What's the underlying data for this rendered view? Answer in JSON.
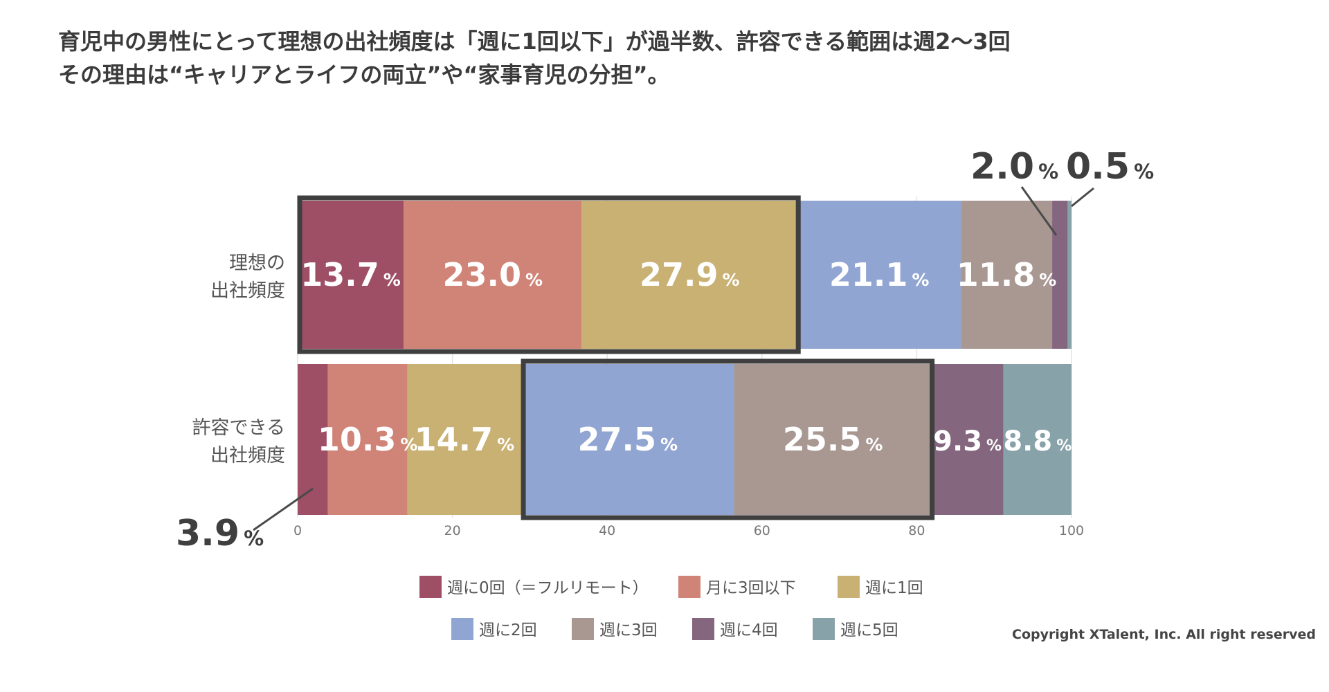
{
  "headline": {
    "line1": "育児中の男性にとって理想の出社頻度は「週に1回以下」が過半数、許容できる範囲は週2〜3回",
    "line2": "その理由は“キャリアとライフの両立”や“家事育児の分担”。"
  },
  "chart_data": {
    "type": "bar",
    "orientation": "horizontal",
    "stacked": true,
    "categories": [
      "理想の\n出社頻度",
      "許容できる\n出社頻度"
    ],
    "category_lines": [
      [
        "理想の",
        "出社頻度"
      ],
      [
        "許容できる",
        "出社頻度"
      ]
    ],
    "series": [
      {
        "name": "週に0回（＝フルリモート）",
        "color": "#9e4f66",
        "values": [
          13.7,
          3.9
        ]
      },
      {
        "name": "月に3回以下",
        "color": "#cf8477",
        "values": [
          23.0,
          10.3
        ]
      },
      {
        "name": "週に1回",
        "color": "#c9b073",
        "values": [
          27.9,
          14.7
        ]
      },
      {
        "name": "週に2回",
        "color": "#91a5d2",
        "values": [
          21.1,
          27.5
        ]
      },
      {
        "name": "週に3回",
        "color": "#a99792",
        "values": [
          11.8,
          25.5
        ]
      },
      {
        "name": "週に4回",
        "color": "#84667e",
        "values": [
          2.0,
          9.3
        ]
      },
      {
        "name": "週に5回",
        "color": "#88a2a9",
        "values": [
          0.5,
          8.8
        ]
      }
    ],
    "percent_sign": "%",
    "xlim": [
      0,
      100
    ],
    "xticks": [
      "0",
      "20",
      "40",
      "60",
      "80",
      "100"
    ],
    "highlight_ranges": [
      {
        "category": 0,
        "from_series": 0,
        "to_series": 2
      },
      {
        "category": 1,
        "from_series": 3,
        "to_series": 4
      }
    ],
    "legend_position": "bottom",
    "grid": true
  },
  "copyright": "Copyright XTalent, Inc. All right reserved"
}
